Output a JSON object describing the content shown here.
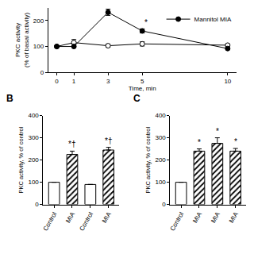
{
  "chart_data": [
    {
      "type": "line",
      "x": [
        0,
        1,
        3,
        5,
        10
      ],
      "xlabel": "Time, min",
      "ylabel": "PKC activity\n(% of basal activity)",
      "xlim": [
        -0.5,
        10.5
      ],
      "xticks": [
        0,
        1,
        3,
        5,
        10
      ],
      "ylim": [
        0,
        250
      ],
      "yticks": [
        0,
        100,
        200
      ],
      "grid": false,
      "legend": "upper right",
      "series": [
        {
          "color": "#000000",
          "marker": "open",
          "values": [
            100,
            115,
            103,
            110,
            105
          ],
          "errors": [
            3,
            12,
            6,
            8,
            4
          ]
        },
        {
          "name": "Mannitol MIA",
          "color": "#000000",
          "marker": "filled",
          "values": [
            100,
            100,
            232,
            160,
            92
          ],
          "errors": [
            3,
            3,
            12,
            8,
            3
          ]
        }
      ],
      "annotations": [
        {
          "x": 5,
          "text": "*"
        }
      ]
    },
    {
      "type": "bar",
      "title": "B",
      "categories": [
        "Control",
        "MIA",
        "Control",
        "MIA"
      ],
      "values": [
        100,
        225,
        90,
        245
      ],
      "errors": [
        null,
        15,
        null,
        12
      ],
      "marks": [
        null,
        "*†",
        null,
        "*†"
      ],
      "colors": [
        "#ffffff",
        "#000000",
        "#ffffff",
        "#000000"
      ],
      "ylabel": "PKC activity, % of control",
      "ylim": [
        0,
        400
      ],
      "yticks": [
        0,
        100,
        200,
        300,
        400
      ],
      "grid": false
    },
    {
      "type": "bar",
      "title": "C",
      "categories": [
        "Control",
        "MIA",
        "MIA",
        "MIA"
      ],
      "values": [
        100,
        240,
        275,
        240
      ],
      "errors": [
        null,
        10,
        25,
        12
      ],
      "marks": [
        null,
        "*",
        "*",
        "*"
      ],
      "colors": [
        "#ffffff",
        "#000000",
        "#000000",
        "#000000"
      ],
      "ylabel": "PKC activity, % of control",
      "ylim": [
        0,
        400
      ],
      "yticks": [
        0,
        100,
        200,
        300,
        400
      ],
      "grid": false
    }
  ]
}
